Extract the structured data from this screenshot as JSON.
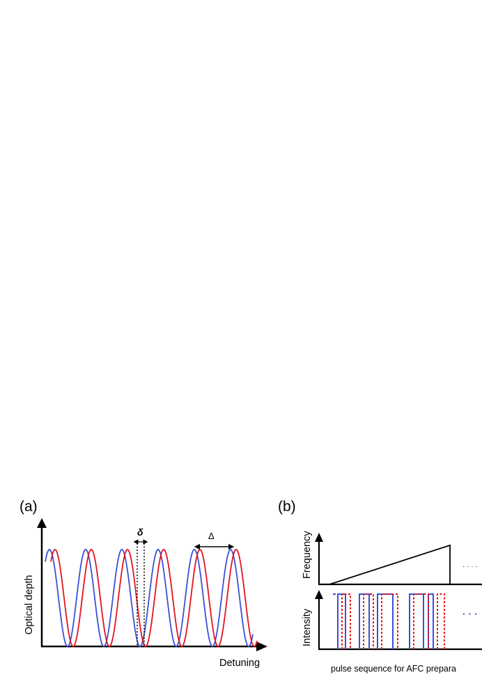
{
  "panel_a": {
    "label": "(a)",
    "y_axis_label": "Optical depth",
    "x_axis_label": "Detuning",
    "delta_small_label": "δ",
    "delta_large_label": "Δ"
  },
  "panel_b": {
    "label": "(b)",
    "top_axis_label": "Frequency",
    "bottom_axis_label": "Intensity",
    "ellipsis_top": "· · · ·",
    "ellipsis_bottom": "· · ·",
    "caption": "pulse sequence for AFC prepara"
  },
  "colors": {
    "blue": "#3b4fd8",
    "red": "#e0141e",
    "axis": "#000000"
  }
}
